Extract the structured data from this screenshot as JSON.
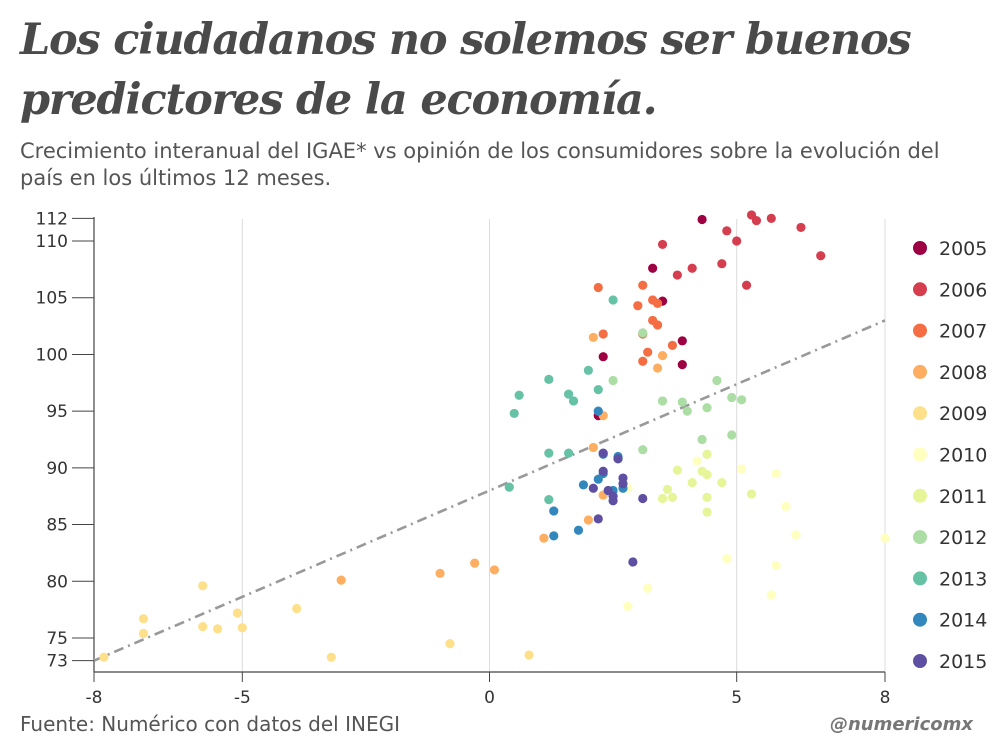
{
  "header": {
    "title": "Los ciudadanos no solemos ser buenos predictores de la economía.",
    "subtitle": "Crecimiento interanual del IGAE* vs opinión de los consumidores sobre la evolución del país en los últimos 12 meses."
  },
  "footer": {
    "source": "Fuente: Numérico con datos del INEGI",
    "handle": "@numericomx"
  },
  "chart_data": {
    "type": "scatter",
    "xlim": [
      -8,
      8
    ],
    "ylim": [
      72,
      113
    ],
    "x_ticks": [
      -8,
      -5,
      0,
      5,
      8
    ],
    "y_ticks": [
      73,
      75,
      80,
      85,
      90,
      95,
      100,
      105,
      110,
      112
    ],
    "grid": "vertical",
    "legend_position": "right",
    "trendline": {
      "style": "dash-dot",
      "color": "#999999",
      "x": [
        -8,
        8
      ],
      "y": [
        73,
        103
      ]
    },
    "series": [
      {
        "name": "2005",
        "color": "#9e0142",
        "points": [
          [
            2.3,
            99.8
          ],
          [
            3.5,
            104.7
          ],
          [
            3.9,
            101.2
          ],
          [
            3.3,
            107.6
          ],
          [
            4.3,
            111.9
          ],
          [
            2.2,
            94.6
          ],
          [
            3.9,
            99.1
          ]
        ]
      },
      {
        "name": "2006",
        "color": "#d53e4f",
        "points": [
          [
            4.8,
            110.9
          ],
          [
            5.3,
            112.3
          ],
          [
            5.4,
            111.8
          ],
          [
            5.7,
            112.0
          ],
          [
            6.3,
            111.2
          ],
          [
            6.7,
            108.7
          ],
          [
            5.2,
            106.1
          ],
          [
            5.0,
            110.0
          ],
          [
            4.7,
            108.0
          ],
          [
            3.5,
            109.7
          ],
          [
            4.1,
            107.6
          ],
          [
            3.8,
            107.0
          ]
        ]
      },
      {
        "name": "2007",
        "color": "#f46d43",
        "points": [
          [
            2.3,
            101.8
          ],
          [
            2.2,
            105.9
          ],
          [
            3.1,
            106.1
          ],
          [
            3.0,
            104.3
          ],
          [
            3.3,
            104.8
          ],
          [
            3.4,
            104.5
          ],
          [
            3.3,
            103.0
          ],
          [
            3.4,
            102.6
          ],
          [
            3.1,
            101.8
          ],
          [
            3.7,
            100.8
          ],
          [
            3.2,
            100.2
          ],
          [
            3.1,
            99.4
          ]
        ]
      },
      {
        "name": "2008",
        "color": "#fdae61",
        "points": [
          [
            2.1,
            101.5
          ],
          [
            3.5,
            99.9
          ],
          [
            3.4,
            98.8
          ],
          [
            2.3,
            94.6
          ],
          [
            2.1,
            91.8
          ],
          [
            2.3,
            87.6
          ],
          [
            2.0,
            85.4
          ],
          [
            1.1,
            83.8
          ],
          [
            -0.3,
            81.6
          ],
          [
            0.1,
            81.0
          ],
          [
            -1.0,
            80.7
          ],
          [
            -3.0,
            80.1
          ]
        ]
      },
      {
        "name": "2009",
        "color": "#fee08b",
        "points": [
          [
            -7.8,
            73.3
          ],
          [
            -7.0,
            76.7
          ],
          [
            -7.0,
            75.4
          ],
          [
            -5.8,
            79.6
          ],
          [
            -5.8,
            76.0
          ],
          [
            -5.1,
            77.2
          ],
          [
            -5.0,
            75.9
          ],
          [
            -5.5,
            75.8
          ],
          [
            -3.9,
            77.6
          ],
          [
            -3.2,
            73.3
          ],
          [
            -0.8,
            74.5
          ],
          [
            0.8,
            73.5
          ]
        ]
      },
      {
        "name": "2010",
        "color": "#ffffbf",
        "points": [
          [
            2.8,
            77.8
          ],
          [
            3.2,
            79.4
          ],
          [
            4.8,
            82.0
          ],
          [
            5.1,
            89.9
          ],
          [
            5.8,
            89.5
          ],
          [
            6.0,
            86.6
          ],
          [
            6.2,
            84.1
          ],
          [
            5.8,
            81.4
          ],
          [
            5.7,
            78.8
          ],
          [
            8.0,
            83.8
          ],
          [
            4.2,
            90.6
          ],
          [
            2.8,
            88.2
          ]
        ]
      },
      {
        "name": "2011",
        "color": "#e6f598",
        "points": [
          [
            3.5,
            87.3
          ],
          [
            3.6,
            88.1
          ],
          [
            3.7,
            87.4
          ],
          [
            3.8,
            89.8
          ],
          [
            4.4,
            89.4
          ],
          [
            4.4,
            91.2
          ],
          [
            4.3,
            89.7
          ],
          [
            4.1,
            88.7
          ],
          [
            4.4,
            87.4
          ],
          [
            4.4,
            86.1
          ],
          [
            4.7,
            88.7
          ],
          [
            5.3,
            87.7
          ]
        ]
      },
      {
        "name": "2012",
        "color": "#abdda4",
        "points": [
          [
            3.1,
            101.9
          ],
          [
            2.5,
            97.7
          ],
          [
            3.5,
            95.9
          ],
          [
            3.9,
            95.8
          ],
          [
            4.0,
            95.0
          ],
          [
            4.4,
            95.3
          ],
          [
            4.6,
            97.7
          ],
          [
            4.9,
            96.2
          ],
          [
            5.1,
            96.0
          ],
          [
            4.9,
            92.9
          ],
          [
            4.3,
            92.5
          ],
          [
            3.1,
            91.6
          ]
        ]
      },
      {
        "name": "2013",
        "color": "#66c2a5",
        "points": [
          [
            0.5,
            94.8
          ],
          [
            0.6,
            96.4
          ],
          [
            1.2,
            97.8
          ],
          [
            1.6,
            96.5
          ],
          [
            1.7,
            95.9
          ],
          [
            2.0,
            98.6
          ],
          [
            2.2,
            96.9
          ],
          [
            2.5,
            104.8
          ],
          [
            1.2,
            91.3
          ],
          [
            1.6,
            91.3
          ],
          [
            0.4,
            88.3
          ],
          [
            1.2,
            87.2
          ]
        ]
      },
      {
        "name": "2014",
        "color": "#3288bd",
        "points": [
          [
            1.3,
            86.2
          ],
          [
            1.3,
            84.0
          ],
          [
            1.8,
            84.5
          ],
          [
            1.9,
            88.5
          ],
          [
            2.2,
            95.0
          ],
          [
            2.3,
            89.5
          ],
          [
            2.2,
            89.0
          ],
          [
            2.5,
            88.0
          ],
          [
            2.6,
            90.8
          ],
          [
            2.7,
            88.2
          ],
          [
            2.6,
            91.0
          ],
          [
            2.3,
            91.2
          ]
        ]
      },
      {
        "name": "2015",
        "color": "#5e4fa2",
        "points": [
          [
            2.2,
            85.5
          ],
          [
            2.1,
            88.2
          ],
          [
            2.3,
            89.7
          ],
          [
            2.5,
            87.5
          ],
          [
            2.5,
            87.1
          ],
          [
            2.7,
            88.6
          ],
          [
            2.7,
            89.1
          ],
          [
            3.1,
            87.3
          ],
          [
            2.9,
            81.7
          ],
          [
            2.3,
            91.3
          ],
          [
            2.6,
            90.8
          ],
          [
            2.4,
            88.0
          ]
        ]
      }
    ]
  }
}
